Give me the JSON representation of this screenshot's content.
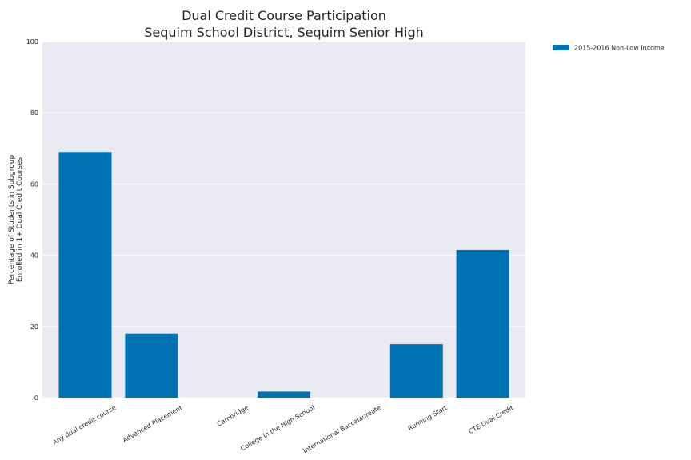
{
  "chart_data": {
    "type": "bar",
    "title": [
      "Dual Credit Course Participation",
      "Sequim School District, Sequim Senior High"
    ],
    "ylabel": [
      "Percentage of Students in Subgroup",
      "Enrolled in 1+ Dual Credit Courses"
    ],
    "xlabel": "",
    "categories": [
      "Any dual credit course",
      "Advanced Placement",
      "Cambridge",
      "College in the High School",
      "International Baccalaureate",
      "Running Start",
      "CTE Dual Credit"
    ],
    "series": [
      {
        "name": "2015-2016 Non-Low Income",
        "values": [
          69,
          18,
          0,
          1.7,
          0,
          15,
          41.5
        ],
        "color": "#0072b2"
      }
    ],
    "ylim": [
      0,
      100
    ],
    "yticks": [
      "0",
      "20",
      "40",
      "60",
      "80",
      "100"
    ],
    "grid": true,
    "legend_position": "outside-top-right",
    "plot_background": "#eaeaf2"
  }
}
